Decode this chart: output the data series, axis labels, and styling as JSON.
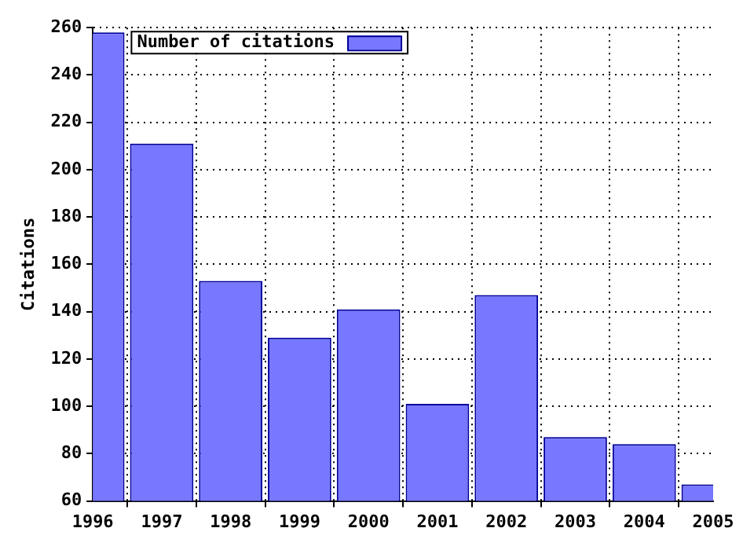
{
  "chart_data": {
    "type": "bar",
    "ylabel": "Citations",
    "x": [
      1996,
      1997,
      1998,
      1999,
      2000,
      2001,
      2002,
      2003,
      2004,
      2005
    ],
    "series": [
      {
        "name": "Number of citations",
        "color": "#7777ff",
        "values": [
          258,
          211,
          153,
          129,
          141,
          101,
          147,
          87,
          84,
          67
        ]
      }
    ],
    "xlim": [
      1996,
      2005
    ],
    "xticks": [
      1996,
      1997,
      1998,
      1999,
      2000,
      2001,
      2002,
      2003,
      2004,
      2005
    ],
    "ylim": [
      60,
      260
    ],
    "yticks": [
      60,
      80,
      100,
      120,
      140,
      160,
      180,
      200,
      220,
      240,
      260
    ],
    "grid": true,
    "legend": "top left"
  }
}
